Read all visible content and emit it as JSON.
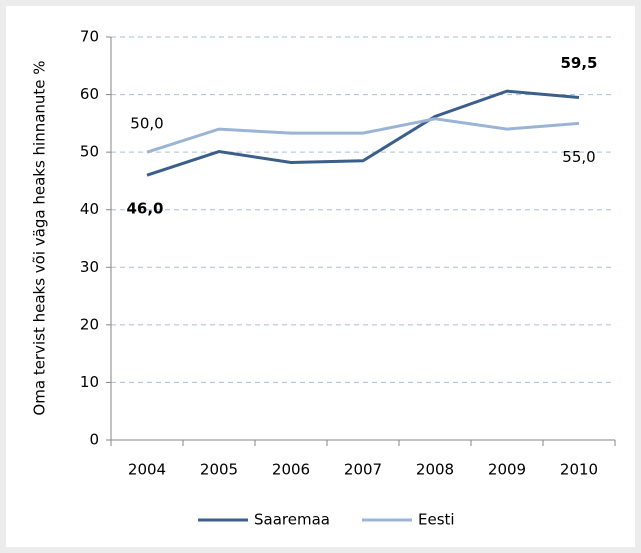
{
  "chart_data": {
    "type": "line",
    "y_label": "Oma tervist heaks või väga heaks hinnanute %",
    "categories": [
      "2004",
      "2005",
      "2006",
      "2007",
      "2008",
      "2009",
      "2010"
    ],
    "series": [
      {
        "name": "Saaremaa",
        "color": "#3b5f8a",
        "values": [
          46.0,
          50.1,
          48.2,
          48.5,
          56.2,
          60.6,
          59.5
        ],
        "value_labels": [
          "46,0",
          null,
          null,
          null,
          null,
          null,
          "59,5"
        ]
      },
      {
        "name": "Eesti",
        "color": "#9bb4d6",
        "values": [
          50.0,
          54.0,
          53.3,
          53.3,
          55.8,
          54.0,
          55.0
        ],
        "value_labels": [
          "50,0",
          null,
          null,
          null,
          null,
          null,
          "55,0"
        ]
      }
    ],
    "ylim": [
      0,
      70
    ],
    "yticks": [
      0,
      10,
      20,
      30,
      40,
      50,
      60,
      70
    ],
    "grid": true,
    "legend": "bottom"
  }
}
